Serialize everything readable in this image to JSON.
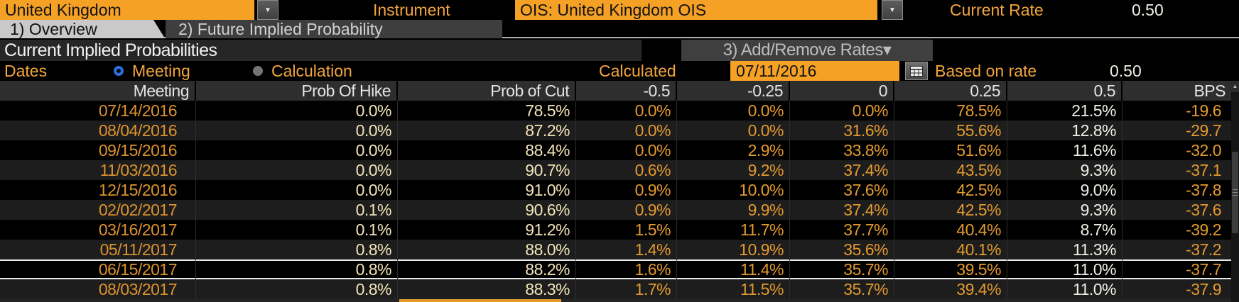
{
  "topbar": {
    "country": "United Kingdom",
    "instrument_label": "Instrument",
    "instrument_value": "OIS: United Kingdom OIS",
    "current_rate_label": "Current Rate",
    "current_rate_value": "0.50"
  },
  "tabs": [
    {
      "label": "1) Overview",
      "active": true
    },
    {
      "label": "2) Future Implied Probability",
      "active": false
    }
  ],
  "section": {
    "title": "Current Implied Probabilities",
    "add_remove_button": "3) Add/Remove Rates▾"
  },
  "dates_row": {
    "label": "Dates",
    "radio_meeting_label": "Meeting",
    "radio_calculation_label": "Calculation",
    "selected_radio": "Meeting",
    "calculated_label": "Calculated",
    "calculated_date": "07/11/2016",
    "calendar_icon": "calendar-grid",
    "based_on_rate_label": "Based on rate",
    "based_on_rate_value": "0.50"
  },
  "table": {
    "columns": [
      "Meeting",
      "Prob Of Hike",
      "Prob of Cut",
      "-0.5",
      "-0.25",
      "0",
      "0.25",
      "0.5",
      "BPS"
    ],
    "rows": [
      [
        "07/14/2016",
        "0.0%",
        "78.5%",
        "0.0%",
        "0.0%",
        "0.0%",
        "78.5%",
        "21.5%",
        "-19.6"
      ],
      [
        "08/04/2016",
        "0.0%",
        "87.2%",
        "0.0%",
        "0.0%",
        "31.6%",
        "55.6%",
        "12.8%",
        "-29.7"
      ],
      [
        "09/15/2016",
        "0.0%",
        "88.4%",
        "0.0%",
        "2.9%",
        "33.8%",
        "51.6%",
        "11.6%",
        "-32.0"
      ],
      [
        "11/03/2016",
        "0.0%",
        "90.7%",
        "0.6%",
        "9.2%",
        "37.4%",
        "43.5%",
        "9.3%",
        "-37.1"
      ],
      [
        "12/15/2016",
        "0.0%",
        "91.0%",
        "0.9%",
        "10.0%",
        "37.6%",
        "42.5%",
        "9.0%",
        "-37.8"
      ],
      [
        "02/02/2017",
        "0.1%",
        "90.6%",
        "0.9%",
        "9.9%",
        "37.4%",
        "42.5%",
        "9.3%",
        "-37.6"
      ],
      [
        "03/16/2017",
        "0.1%",
        "91.2%",
        "1.5%",
        "11.7%",
        "37.7%",
        "40.4%",
        "8.7%",
        "-39.2"
      ],
      [
        "05/11/2017",
        "0.8%",
        "88.0%",
        "1.4%",
        "10.9%",
        "35.6%",
        "40.1%",
        "11.3%",
        "-37.2"
      ],
      [
        "06/15/2017",
        "0.8%",
        "88.2%",
        "1.6%",
        "11.4%",
        "35.7%",
        "39.5%",
        "11.0%",
        "-37.7"
      ],
      [
        "08/03/2017",
        "0.8%",
        "88.3%",
        "1.7%",
        "11.5%",
        "35.7%",
        "39.4%",
        "11.0%",
        "-37.9"
      ]
    ],
    "selected_row_index": 8
  },
  "colors": {
    "amber_field_bg": "#f5a126",
    "amber_label": "#f3a53c",
    "amber_value": "#e49a2e",
    "cream_value": "#f2e3b8",
    "white_value": "#f1eee7",
    "radio_selected_blue": "#2e6fe0",
    "row_alt_bg": "#1d1d1d",
    "header_bg": "#2e2e2e"
  }
}
